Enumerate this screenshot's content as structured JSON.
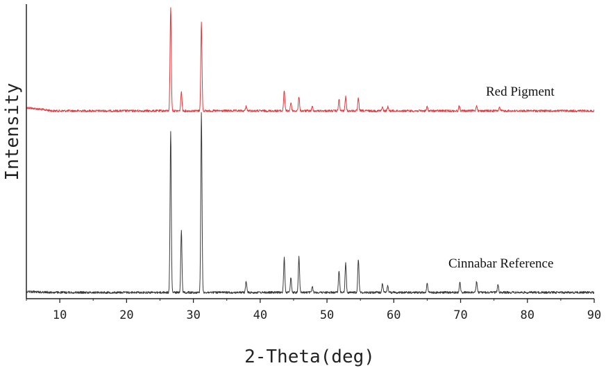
{
  "chart_data": {
    "type": "line",
    "title": "",
    "xlabel": "2-Theta(deg)",
    "ylabel": "Intensity",
    "xlim": [
      5,
      90
    ],
    "x_ticks": [
      10,
      20,
      30,
      40,
      50,
      60,
      70,
      80,
      90
    ],
    "y_ticks_labeled": false,
    "grid": false,
    "legend": "inline labels",
    "series": [
      {
        "name": "Red Pigment",
        "color": "#e0393e",
        "baseline": 160,
        "peaks": [
          {
            "x": 26.6,
            "h": 150
          },
          {
            "x": 28.2,
            "h": 28
          },
          {
            "x": 31.2,
            "h": 128
          },
          {
            "x": 37.9,
            "h": 7
          },
          {
            "x": 43.6,
            "h": 30
          },
          {
            "x": 44.6,
            "h": 12
          },
          {
            "x": 45.8,
            "h": 20
          },
          {
            "x": 47.8,
            "h": 6
          },
          {
            "x": 51.8,
            "h": 16
          },
          {
            "x": 52.8,
            "h": 20
          },
          {
            "x": 54.7,
            "h": 18
          },
          {
            "x": 58.3,
            "h": 5
          },
          {
            "x": 59.1,
            "h": 6
          },
          {
            "x": 65.0,
            "h": 6
          },
          {
            "x": 69.8,
            "h": 7
          },
          {
            "x": 72.4,
            "h": 8
          },
          {
            "x": 75.8,
            "h": 5
          }
        ]
      },
      {
        "name": "Cinnabar Reference",
        "color": "#3a3a3a",
        "baseline": 422,
        "peaks": [
          {
            "x": 26.6,
            "h": 232
          },
          {
            "x": 28.2,
            "h": 90
          },
          {
            "x": 31.2,
            "h": 260
          },
          {
            "x": 37.9,
            "h": 16
          },
          {
            "x": 43.6,
            "h": 50
          },
          {
            "x": 44.6,
            "h": 22
          },
          {
            "x": 45.8,
            "h": 52
          },
          {
            "x": 47.8,
            "h": 8
          },
          {
            "x": 51.8,
            "h": 32
          },
          {
            "x": 52.8,
            "h": 42
          },
          {
            "x": 54.7,
            "h": 48
          },
          {
            "x": 58.3,
            "h": 14
          },
          {
            "x": 59.1,
            "h": 10
          },
          {
            "x": 65.0,
            "h": 14
          },
          {
            "x": 69.9,
            "h": 14
          },
          {
            "x": 72.4,
            "h": 16
          },
          {
            "x": 75.6,
            "h": 12
          }
        ]
      }
    ]
  }
}
